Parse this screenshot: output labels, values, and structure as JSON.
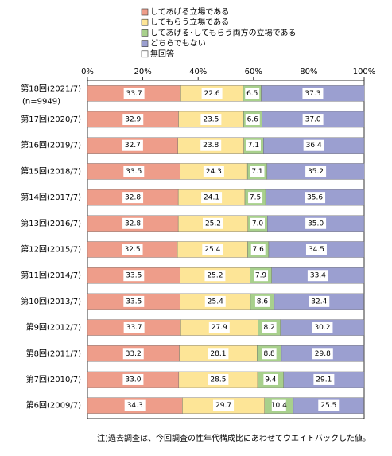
{
  "chart_data": {
    "type": "stacked-bar-horizontal",
    "categories": [
      "第18回(2021/7)",
      "第17回(2020/7)",
      "第16回(2019/7)",
      "第15回(2018/7)",
      "第14回(2017/7)",
      "第13回(2016/7)",
      "第12回(2015/7)",
      "第11回(2014/7)",
      "第10回(2013/7)",
      "第9回(2012/7)",
      "第8回(2011/7)",
      "第7回(2010/7)",
      "第6回(2009/7)"
    ],
    "sample_note": "(n=9949)",
    "series": [
      {
        "name": "してあげる立場である",
        "color": "#ee9d8a",
        "values": [
          33.7,
          32.9,
          32.7,
          33.5,
          32.8,
          32.8,
          32.5,
          33.5,
          33.5,
          33.7,
          33.2,
          33.0,
          34.3
        ],
        "value_labels": [
          "33.7",
          "32.9",
          "32.7",
          "33.5",
          "32.8",
          "32.8",
          "32.5",
          "33.5",
          "33.5",
          "33.7",
          "33.2",
          "33.0",
          "34.3"
        ]
      },
      {
        "name": "してもらう立場である",
        "color": "#fde597",
        "values": [
          22.6,
          23.5,
          23.8,
          24.3,
          24.1,
          25.2,
          25.4,
          25.2,
          25.4,
          27.9,
          28.1,
          28.5,
          29.7
        ],
        "value_labels": [
          "22.6",
          "23.5",
          "23.8",
          "24.3",
          "24.1",
          "25.2",
          "25.4",
          "25.2",
          "25.4",
          "27.9",
          "28.1",
          "28.5",
          "29.7"
        ]
      },
      {
        "name": "してあげる･してもらう両方の立場である",
        "color": "#a8d08c",
        "values": [
          6.5,
          6.6,
          7.1,
          7.1,
          7.5,
          7.0,
          7.6,
          7.9,
          8.6,
          8.2,
          8.8,
          9.4,
          10.4
        ],
        "value_labels": [
          "6.5",
          "6.6",
          "7.1",
          "7.1",
          "7.5",
          "7.0",
          "7.6",
          "7.9",
          "8.6",
          "8.2",
          "8.8",
          "9.4",
          "10.4"
        ]
      },
      {
        "name": "どちらでもない",
        "color": "#9b9fd0",
        "values": [
          37.3,
          37.0,
          36.4,
          35.2,
          35.6,
          35.0,
          34.5,
          33.4,
          32.4,
          30.2,
          29.8,
          29.1,
          25.5
        ],
        "value_labels": [
          "37.3",
          "37.0",
          "36.4",
          "35.2",
          "35.6",
          "35.0",
          "34.5",
          "33.4",
          "32.4",
          "30.2",
          "29.8",
          "29.1",
          "25.5"
        ]
      },
      {
        "name": "無回答",
        "color": "#ffffff",
        "values": [
          0,
          0,
          0,
          0,
          0,
          0,
          0,
          0,
          0.1,
          0,
          0.1,
          0,
          0.1
        ]
      }
    ],
    "xlim": [
      0,
      100
    ],
    "xticks": [
      {
        "value": 0,
        "label": "0%"
      },
      {
        "value": 20,
        "label": "20%"
      },
      {
        "value": 40,
        "label": "40%"
      },
      {
        "value": 60,
        "label": "60%"
      },
      {
        "value": 80,
        "label": "80%"
      },
      {
        "value": 100,
        "label": "100%"
      }
    ],
    "footnote": "注)過去調査は、今回調査の性年代構成比にあわせてウエイトバックした値。"
  }
}
